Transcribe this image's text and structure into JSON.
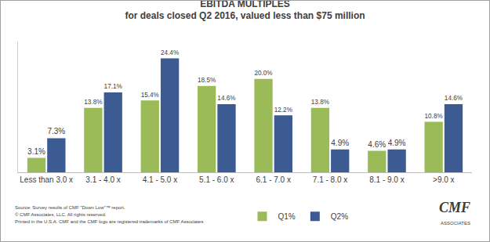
{
  "chart_data": {
    "type": "bar",
    "title": "EBITDA MULTIPLES",
    "subtitle": "for deals closed Q2 2016, valued less than $75 million",
    "categories": [
      "Less than 3.0 x",
      "3.1 - 4.0 x",
      "4.1 - 5.0 x",
      "5.1 - 6.0 x",
      "6.1 - 7.0 x",
      "7.1 - 8.0 x",
      "8.1 - 9.0 x",
      ">9.0 x"
    ],
    "series": [
      {
        "name": "Q1%",
        "color": "#9bbb59",
        "values": [
          3.1,
          13.8,
          15.4,
          18.5,
          20,
          13.8,
          4.6,
          10.8
        ],
        "value_labels": [
          "3.1%",
          "13.8%",
          "15.4%",
          "18.5%",
          "20.0%",
          "13.8%",
          "4.6%",
          "10.8%"
        ]
      },
      {
        "name": "Q2%",
        "color": "#3b5b92",
        "values": [
          7.3,
          17.1,
          24.4,
          14.6,
          12.2,
          4.9,
          4.9,
          14.6
        ],
        "value_labels": [
          "7.3%",
          "17.1%",
          "24.4%",
          "14.6%",
          "12.2%",
          "4.9%",
          "4.9%",
          "14.6%"
        ]
      }
    ],
    "ylim": [
      0,
      28
    ],
    "yticks": [],
    "grid": false,
    "legend": "bottom",
    "data_labels": true,
    "tick_labels": "x",
    "source_notes": [
      "Source: Survey results of CMF \"Down Low\"™ report.",
      "© CMF Associates, LLC. All rights reserved.",
      "Printed in the U.S.A. CMF and the CMF logo are registered trademarks of CMF Associates"
    ],
    "logo": {
      "text": "CMF",
      "subtext": "ASSOCIATES"
    }
  }
}
